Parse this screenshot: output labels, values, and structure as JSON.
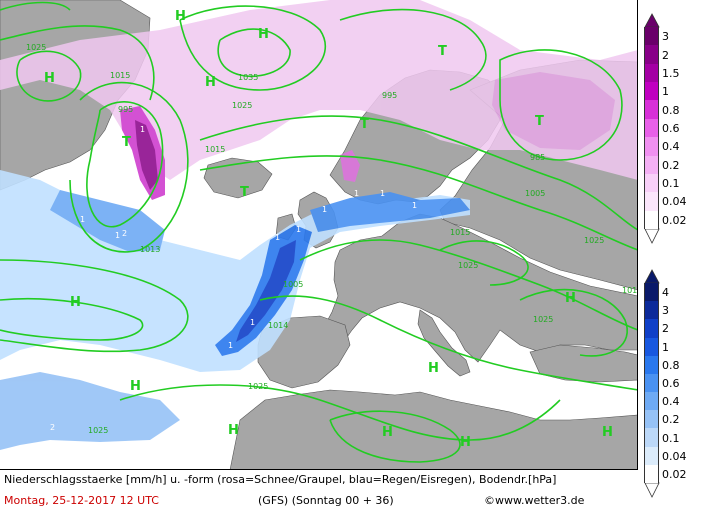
{
  "map": {
    "pressure_centers": [
      {
        "label": "H",
        "kind": "high"
      },
      {
        "label": "H",
        "kind": "high"
      },
      {
        "label": "H",
        "kind": "high"
      },
      {
        "label": "H",
        "kind": "high"
      },
      {
        "label": "T",
        "kind": "low"
      },
      {
        "label": "T",
        "kind": "low"
      },
      {
        "label": "T",
        "kind": "low"
      },
      {
        "label": "T",
        "kind": "low"
      },
      {
        "label": "T",
        "kind": "low"
      },
      {
        "label": "H",
        "kind": "high"
      },
      {
        "label": "H",
        "kind": "high"
      },
      {
        "label": "H",
        "kind": "high"
      },
      {
        "label": "H",
        "kind": "high"
      },
      {
        "label": "H",
        "kind": "high"
      },
      {
        "label": "H",
        "kind": "high"
      },
      {
        "label": "H",
        "kind": "high"
      },
      {
        "label": "H",
        "kind": "high"
      }
    ],
    "isobar_labels": [
      "1025",
      "1015",
      "995",
      "1035",
      "1025",
      "1015",
      "985",
      "1005",
      "1015",
      "1025",
      "1005",
      "1014",
      "1025",
      "1025",
      "1025",
      "1025",
      "1016",
      "995",
      "1013"
    ],
    "intensity_labels": [
      "1",
      "1",
      "2",
      "2",
      "1",
      "1",
      "1",
      "1",
      "1",
      "1",
      "1",
      "1",
      "1",
      "1",
      "2"
    ],
    "colors": {
      "sea": "#ffffff",
      "land": "#a6a6a6",
      "isobar": "#22cc22",
      "snow_light": "#f0c8f0",
      "snow_dark": "#990099",
      "rain_light": "#c0e0ff",
      "rain_dark": "#1030b0"
    }
  },
  "legend_snow": {
    "colors": [
      "#6a006a",
      "#880088",
      "#a400a4",
      "#c000c0",
      "#d830d8",
      "#e860e8",
      "#f090f0",
      "#f4b0f4",
      "#f8d0f8",
      "#fbe6fb",
      "#ffffff"
    ],
    "ticks": [
      "3",
      "2",
      "1.5",
      "1",
      "0.8",
      "0.6",
      "0.4",
      "0.2",
      "0.1",
      "0.04",
      "0.02"
    ]
  },
  "legend_rain": {
    "colors": [
      "#0a1a6a",
      "#0c2a9a",
      "#1040c8",
      "#1858e0",
      "#2a78ee",
      "#4a92f2",
      "#6eaaf4",
      "#96c2f6",
      "#bcd8f8",
      "#dcecfb",
      "#ffffff"
    ],
    "ticks": [
      "4",
      "3",
      "2",
      "1",
      "0.8",
      "0.6",
      "0.4",
      "0.2",
      "0.1",
      "0.04",
      "0.02"
    ]
  },
  "footer": {
    "caption": "Niederschlagsstaerke [mm/h] u. -form (rosa=Schnee/Graupel, blau=Regen/Eisregen), Bodendr.[hPa]",
    "date": "Montag, 25-12-2017  12 UTC",
    "model": "(GFS)  (Sonntag 00 + 36)",
    "copyright": "©www.wetter3.de"
  }
}
